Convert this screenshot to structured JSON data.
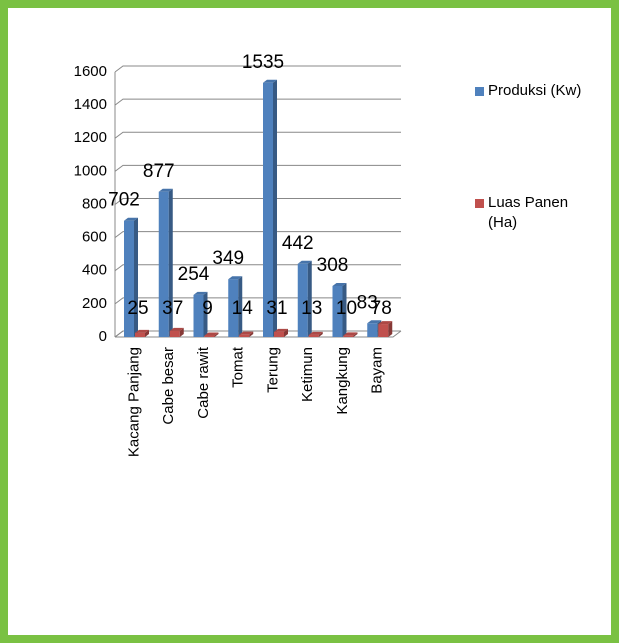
{
  "chart_data": {
    "type": "bar",
    "categories": [
      "Kacang Panjang",
      "Cabe besar",
      "Cabe rawit",
      "Tomat",
      "Terung",
      "Ketimun",
      "Kangkung",
      "Bayam"
    ],
    "series": [
      {
        "name": "Produksi (Kw)",
        "color": "#4f81bd",
        "values": [
          702,
          877,
          254,
          349,
          1535,
          442,
          308,
          83
        ]
      },
      {
        "name": "Luas Panen (Ha)",
        "color": "#c0504d",
        "values": [
          25,
          37,
          9,
          14,
          31,
          13,
          10,
          78
        ]
      }
    ],
    "ylim": [
      0,
      1600
    ],
    "yticks": [
      0,
      200,
      400,
      600,
      800,
      1000,
      1200,
      1400,
      1600
    ],
    "grid": true,
    "legend": "right"
  }
}
